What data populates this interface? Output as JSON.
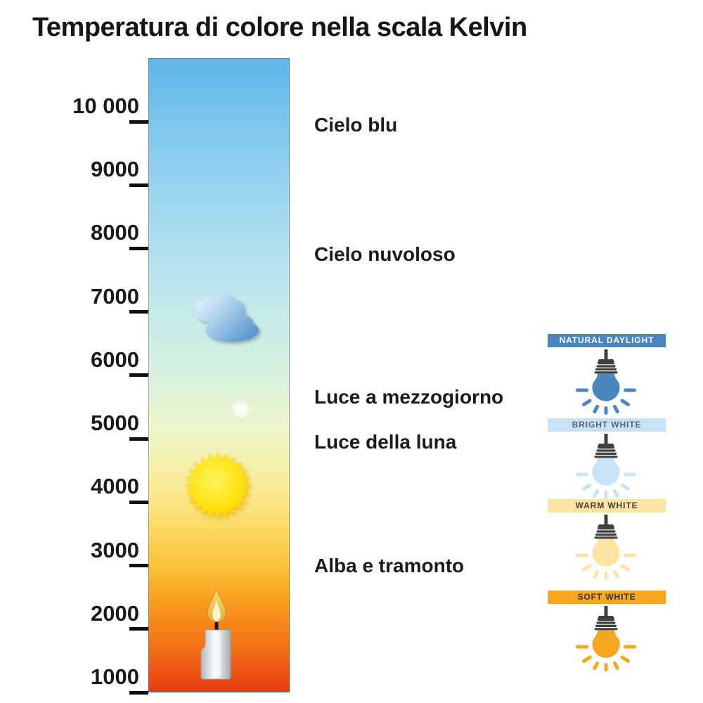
{
  "title": "Temperatura di colore nella scala Kelvin",
  "scale": {
    "unit": "Kelvin",
    "ticks": [
      {
        "label": "10 000",
        "kelvin": 10000
      },
      {
        "label": "9000",
        "kelvin": 9000
      },
      {
        "label": "8000",
        "kelvin": 8000
      },
      {
        "label": "7000",
        "kelvin": 7000
      },
      {
        "label": "6000",
        "kelvin": 6000
      },
      {
        "label": "5000",
        "kelvin": 5000
      },
      {
        "label": "4000",
        "kelvin": 4000
      },
      {
        "label": "3000",
        "kelvin": 3000
      },
      {
        "label": "2000",
        "kelvin": 2000
      },
      {
        "label": "1000",
        "kelvin": 1000
      }
    ]
  },
  "annotations": [
    {
      "label": "Cielo blu",
      "kelvin": 9950
    },
    {
      "label": "Cielo nuvoloso",
      "kelvin": 7900
    },
    {
      "label": "Luce a mezzogiorno",
      "kelvin": 5650
    },
    {
      "label": "Luce della luna",
      "kelvin": 4950
    },
    {
      "label": "Alba e tramonto",
      "kelvin": 3000
    }
  ],
  "bar_icons": [
    {
      "name": "clouds-icon",
      "kelvin": 6900
    },
    {
      "name": "moon-glow-icon",
      "kelvin": 5480
    },
    {
      "name": "sun-icon",
      "kelvin": 4270
    },
    {
      "name": "candle-icon",
      "kelvin": 1900
    }
  ],
  "legend": [
    {
      "label": "NATURAL DAYLIGHT",
      "banner_color": "#4a86be",
      "text_color": "#ffffff",
      "bulb_color": "#4a86be"
    },
    {
      "label": "BRIGHT WHITE",
      "banner_color": "#c9e3f6",
      "text_color": "#57636e",
      "bulb_color": "#c9e3f6"
    },
    {
      "label": "WARM WHITE",
      "banner_color": "#fbe3a3",
      "text_color": "#46413a",
      "bulb_color": "#fbe3a3"
    },
    {
      "label": "SOFT WHITE",
      "banner_color": "#f5a71f",
      "text_color": "#333333",
      "bulb_color": "#f5a71f"
    }
  ],
  "gradient": {
    "top_color": "#5fb6e9",
    "bottom_color": "#e63c10"
  }
}
